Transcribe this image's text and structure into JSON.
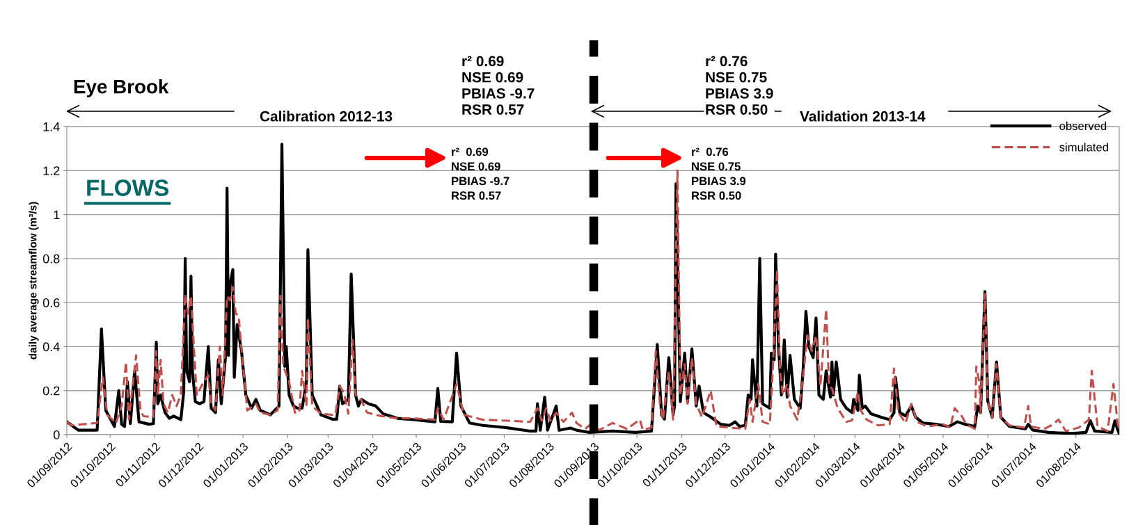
{
  "chart_data": {
    "type": "line",
    "title": "Eye Brook",
    "ylabel": "daily average streamflow (m³/s)",
    "annotations": [
      "FLOWS",
      "Calibration 2012-13",
      "Validation 2013-14",
      "r² 0.69\nNSE 0.69\nPBIAS -9.7\nRSR 0.57",
      "r²  0.69\nNSE 0.69\nPBIAS -9.7\nRSR 0.57",
      "r² 0.76\nNSE 0.75\nPBIAS 3.9\nRSR 0.50",
      "r²  0.76\nNSE 0.75\nPBIAS 3.9\nRSR 0.50"
    ],
    "xlim": [
      "2012-09-01",
      "2014-08-31"
    ],
    "xticks": [
      {
        "value": "2012-09-01",
        "label": "01/09/2012"
      },
      {
        "value": "2012-10-01",
        "label": "01/10/2012"
      },
      {
        "value": "2012-11-01",
        "label": "01/11/2012"
      },
      {
        "value": "2012-12-01",
        "label": "01/12/2012"
      },
      {
        "value": "2013-01-01",
        "label": "01/01/2013"
      },
      {
        "value": "2013-02-01",
        "label": "01/02/2013"
      },
      {
        "value": "2013-03-01",
        "label": "01/03/2013"
      },
      {
        "value": "2013-04-01",
        "label": "01/04/2013"
      },
      {
        "value": "2013-05-01",
        "label": "01/05/2013"
      },
      {
        "value": "2013-06-01",
        "label": "01/06/2013"
      },
      {
        "value": "2013-07-01",
        "label": "01/07/2013"
      },
      {
        "value": "2013-08-01",
        "label": "01/08/2013"
      },
      {
        "value": "2013-09-01",
        "label": "01/09/2013"
      },
      {
        "value": "2013-10-01",
        "label": "01/10/2013"
      },
      {
        "value": "2013-11-01",
        "label": "01/11/2013"
      },
      {
        "value": "2013-12-01",
        "label": "01/12/2013"
      },
      {
        "value": "2014-01-01",
        "label": "01/01/2014"
      },
      {
        "value": "2014-02-01",
        "label": "01/02/2014"
      },
      {
        "value": "2014-03-01",
        "label": "01/03/2014"
      },
      {
        "value": "2014-04-01",
        "label": "01/04/2014"
      },
      {
        "value": "2014-05-01",
        "label": "01/05/2014"
      },
      {
        "value": "2014-06-01",
        "label": "01/06/2014"
      },
      {
        "value": "2014-07-01",
        "label": "01/07/2014"
      },
      {
        "value": "2014-08-01",
        "label": "01/08/2014"
      }
    ],
    "ylim": [
      0,
      1.4
    ],
    "yticks": [
      0,
      0.2,
      0.4,
      0.6,
      0.8,
      1,
      1.2,
      1.4
    ],
    "grid": "y",
    "legend": "top right",
    "marker": "none",
    "ref_lines": [
      {
        "axis": "x",
        "value": "2013-09-01",
        "color": "#000000",
        "line_style": "dashed"
      }
    ],
    "series": [
      {
        "name": "observed",
        "color": "#000000",
        "line_style": "solid",
        "x": [
          "2012-09-01",
          "2012-09-09",
          "2012-09-22",
          "2012-09-25",
          "2012-09-28",
          "2012-10-04",
          "2012-10-07",
          "2012-10-09",
          "2012-10-11",
          "2012-10-13",
          "2012-10-15",
          "2012-10-18",
          "2012-10-21",
          "2012-10-28",
          "2012-10-31",
          "2012-11-02",
          "2012-11-03",
          "2012-11-05",
          "2012-11-08",
          "2012-11-11",
          "2012-11-14",
          "2012-11-19",
          "2012-11-21",
          "2012-11-22",
          "2012-11-23",
          "2012-11-25",
          "2012-11-26",
          "2012-11-27",
          "2012-11-29",
          "2012-12-02",
          "2012-12-05",
          "2012-12-08",
          "2012-12-10",
          "2012-12-13",
          "2012-12-15",
          "2012-12-17",
          "2012-12-20",
          "2012-12-21",
          "2012-12-22",
          "2012-12-23",
          "2012-12-25",
          "2012-12-26",
          "2012-12-28",
          "2012-12-31",
          "2013-01-03",
          "2013-01-07",
          "2013-01-10",
          "2013-01-13",
          "2013-01-20",
          "2013-01-26",
          "2013-01-28",
          "2013-01-30",
          "2013-01-31",
          "2013-02-02",
          "2013-02-05",
          "2013-02-08",
          "2013-02-11",
          "2013-02-14",
          "2013-02-15",
          "2013-02-18",
          "2013-02-24",
          "2013-03-04",
          "2013-03-07",
          "2013-03-09",
          "2013-03-11",
          "2013-03-15",
          "2013-03-17",
          "2013-03-20",
          "2013-03-22",
          "2013-03-24",
          "2013-03-29",
          "2013-04-03",
          "2013-04-08",
          "2013-04-18",
          "2013-04-29",
          "2013-05-14",
          "2013-05-16",
          "2013-05-18",
          "2013-05-26",
          "2013-05-29",
          "2013-06-01",
          "2013-06-07",
          "2013-06-16",
          "2013-07-02",
          "2013-07-19",
          "2013-07-23",
          "2013-07-24",
          "2013-07-26",
          "2013-07-29",
          "2013-07-31",
          "2013-08-06",
          "2013-08-08",
          "2013-08-16",
          "2013-08-20",
          "2013-08-29",
          "2013-09-14",
          "2013-09-30",
          "2013-10-11",
          "2013-10-15",
          "2013-10-18",
          "2013-10-20",
          "2013-10-23",
          "2013-10-26",
          "2013-10-27",
          "2013-10-28",
          "2013-10-31",
          "2013-11-03",
          "2013-11-05",
          "2013-11-08",
          "2013-11-11",
          "2013-11-13",
          "2013-11-16",
          "2013-11-21",
          "2013-11-28",
          "2013-12-04",
          "2013-12-08",
          "2013-12-11",
          "2013-12-15",
          "2013-12-17",
          "2013-12-19",
          "2013-12-20",
          "2013-12-23",
          "2013-12-25",
          "2013-12-27",
          "2014-01-01",
          "2014-01-02",
          "2014-01-04",
          "2014-01-05",
          "2014-01-07",
          "2014-01-09",
          "2014-01-11",
          "2014-01-13",
          "2014-01-15",
          "2014-01-18",
          "2014-01-22",
          "2014-01-24",
          "2014-01-26",
          "2014-01-28",
          "2014-01-31",
          "2014-02-02",
          "2014-02-04",
          "2014-02-07",
          "2014-02-09",
          "2014-02-12",
          "2014-02-13",
          "2014-02-14",
          "2014-02-16",
          "2014-02-19",
          "2014-02-23",
          "2014-02-27",
          "2014-02-28",
          "2014-03-03",
          "2014-03-04",
          "2014-03-06",
          "2014-03-08",
          "2014-03-12",
          "2014-03-19",
          "2014-03-25",
          "2014-03-28",
          "2014-03-29",
          "2014-04-01",
          "2014-04-05",
          "2014-04-09",
          "2014-04-12",
          "2014-04-17",
          "2014-04-26",
          "2014-05-05",
          "2014-05-11",
          "2014-05-16",
          "2014-05-23",
          "2014-05-25",
          "2014-05-27",
          "2014-05-30",
          "2014-06-01",
          "2014-06-04",
          "2014-06-07",
          "2014-06-10",
          "2014-06-16",
          "2014-06-27",
          "2014-06-29",
          "2014-07-02",
          "2014-07-13",
          "2014-07-29",
          "2014-08-08",
          "2014-08-11",
          "2014-08-14",
          "2014-08-26",
          "2014-08-28",
          "2014-08-30",
          "2014-08-31"
        ],
        "values": [
          0.058,
          0.02,
          0.02,
          0.48,
          0.11,
          0.037,
          0.2,
          0.047,
          0.037,
          0.24,
          0.05,
          0.29,
          0.058,
          0.047,
          0.05,
          0.42,
          0.14,
          0.18,
          0.1,
          0.074,
          0.084,
          0.068,
          0.195,
          0.8,
          0.29,
          0.24,
          0.72,
          0.29,
          0.15,
          0.14,
          0.15,
          0.4,
          0.12,
          0.1,
          0.34,
          0.14,
          0.36,
          1.12,
          0.36,
          0.68,
          0.75,
          0.26,
          0.5,
          0.38,
          0.18,
          0.12,
          0.16,
          0.11,
          0.09,
          0.13,
          1.32,
          0.31,
          0.4,
          0.18,
          0.13,
          0.12,
          0.12,
          0.24,
          0.84,
          0.18,
          0.09,
          0.07,
          0.07,
          0.22,
          0.14,
          0.16,
          0.73,
          0.18,
          0.13,
          0.16,
          0.14,
          0.13,
          0.095,
          0.074,
          0.068,
          0.058,
          0.21,
          0.06,
          0.058,
          0.37,
          0.13,
          0.053,
          0.042,
          0.032,
          0.016,
          0.016,
          0.14,
          0.02,
          0.17,
          0.02,
          0.13,
          0.02,
          0.03,
          0.02,
          0.01,
          0.016,
          0.01,
          0.016,
          0.41,
          0.09,
          0.07,
          0.35,
          0.09,
          0.13,
          1.14,
          0.15,
          0.37,
          0.15,
          0.39,
          0.13,
          0.22,
          0.1,
          0.08,
          0.047,
          0.042,
          0.058,
          0.037,
          0.042,
          0.18,
          0.16,
          0.34,
          0.13,
          0.8,
          0.14,
          0.12,
          0.37,
          0.34,
          0.82,
          0.4,
          0.18,
          0.43,
          0.17,
          0.36,
          0.16,
          0.12,
          0.29,
          0.56,
          0.4,
          0.35,
          0.53,
          0.18,
          0.16,
          0.29,
          0.17,
          0.33,
          0.18,
          0.33,
          0.16,
          0.12,
          0.1,
          0.16,
          0.11,
          0.27,
          0.12,
          0.13,
          0.095,
          0.079,
          0.068,
          0.1,
          0.26,
          0.1,
          0.085,
          0.13,
          0.079,
          0.053,
          0.047,
          0.037,
          0.058,
          0.047,
          0.037,
          0.13,
          0.1,
          0.65,
          0.15,
          0.079,
          0.33,
          0.079,
          0.037,
          0.026,
          0.047,
          0.021,
          0.01,
          0.005,
          0.01,
          0.063,
          0.016,
          0.01,
          0.063,
          0.021,
          0.005
        ]
      },
      {
        "name": "simulated",
        "color": "#c0504d",
        "line_style": "dashed",
        "x": [
          "2012-09-01",
          "2012-09-04",
          "2012-09-22",
          "2012-09-26",
          "2012-09-29",
          "2012-10-05",
          "2012-10-09",
          "2012-10-12",
          "2012-10-14",
          "2012-10-19",
          "2012-10-22",
          "2012-10-24",
          "2012-10-31",
          "2012-11-02",
          "2012-11-03",
          "2012-11-05",
          "2012-11-07",
          "2012-11-10",
          "2012-11-13",
          "2012-11-16",
          "2012-11-19",
          "2012-11-22",
          "2012-11-24",
          "2012-11-26",
          "2012-11-28",
          "2012-11-30",
          "2012-12-04",
          "2012-12-08",
          "2012-12-10",
          "2012-12-13",
          "2012-12-16",
          "2012-12-18",
          "2012-12-21",
          "2012-12-23",
          "2012-12-25",
          "2012-12-27",
          "2012-12-29",
          "2012-12-31",
          "2013-01-04",
          "2013-01-10",
          "2013-01-13",
          "2013-01-20",
          "2013-01-25",
          "2013-01-27",
          "2013-01-29",
          "2013-02-02",
          "2013-02-06",
          "2013-02-09",
          "2013-02-11",
          "2013-02-14",
          "2013-02-15",
          "2013-02-18",
          "2013-02-24",
          "2013-03-04",
          "2013-03-06",
          "2013-03-09",
          "2013-03-12",
          "2013-03-15",
          "2013-03-18",
          "2013-03-20",
          "2013-03-23",
          "2013-03-28",
          "2013-04-07",
          "2013-04-18",
          "2013-04-29",
          "2013-05-14",
          "2013-05-16",
          "2013-05-20",
          "2013-05-29",
          "2013-06-03",
          "2013-06-16",
          "2013-07-03",
          "2013-07-19",
          "2013-07-24",
          "2013-07-27",
          "2013-07-30",
          "2013-08-02",
          "2013-08-06",
          "2013-08-11",
          "2013-08-17",
          "2013-08-20",
          "2013-08-26",
          "2013-08-29",
          "2013-09-05",
          "2013-09-14",
          "2013-09-24",
          "2013-10-03",
          "2013-10-05",
          "2013-10-11",
          "2013-10-14",
          "2013-10-17",
          "2013-10-19",
          "2013-10-23",
          "2013-10-26",
          "2013-10-29",
          "2013-10-31",
          "2013-11-03",
          "2013-11-05",
          "2013-11-08",
          "2013-11-11",
          "2013-11-15",
          "2013-11-21",
          "2013-11-25",
          "2013-12-04",
          "2013-12-15",
          "2013-12-18",
          "2013-12-20",
          "2013-12-24",
          "2013-12-27",
          "2014-01-01",
          "2014-01-03",
          "2014-01-06",
          "2014-01-08",
          "2014-01-10",
          "2014-01-13",
          "2014-01-15",
          "2014-01-20",
          "2014-01-24",
          "2014-01-27",
          "2014-01-30",
          "2014-02-02",
          "2014-02-05",
          "2014-02-09",
          "2014-02-11",
          "2014-02-13",
          "2014-02-17",
          "2014-02-23",
          "2014-02-27",
          "2014-03-03",
          "2014-03-05",
          "2014-03-09",
          "2014-03-17",
          "2014-03-25",
          "2014-03-28",
          "2014-03-31",
          "2014-04-05",
          "2014-04-09",
          "2014-04-13",
          "2014-04-20",
          "2014-05-01",
          "2014-05-06",
          "2014-05-09",
          "2014-05-14",
          "2014-05-17",
          "2014-05-23",
          "2014-05-24",
          "2014-05-26",
          "2014-05-27",
          "2014-05-30",
          "2014-06-01",
          "2014-06-04",
          "2014-06-07",
          "2014-06-10",
          "2014-06-16",
          "2014-06-26",
          "2014-06-29",
          "2014-07-01",
          "2014-07-10",
          "2014-07-15",
          "2014-07-20",
          "2014-07-25",
          "2014-08-03",
          "2014-08-10",
          "2014-08-12",
          "2014-08-16",
          "2014-08-23",
          "2014-08-27",
          "2014-08-30",
          "2014-08-31"
        ],
        "values": [
          0.058,
          0.042,
          0.053,
          0.26,
          0.09,
          0.053,
          0.13,
          0.33,
          0.069,
          0.36,
          0.11,
          0.084,
          0.079,
          0.38,
          0.18,
          0.34,
          0.14,
          0.1,
          0.18,
          0.13,
          0.18,
          0.64,
          0.55,
          0.63,
          0.4,
          0.18,
          0.23,
          0.27,
          0.14,
          0.11,
          0.4,
          0.18,
          0.63,
          0.61,
          0.67,
          0.55,
          0.54,
          0.39,
          0.11,
          0.14,
          0.1,
          0.09,
          0.11,
          0.63,
          0.31,
          0.24,
          0.1,
          0.1,
          0.29,
          0.13,
          0.53,
          0.13,
          0.095,
          0.09,
          0.09,
          0.22,
          0.19,
          0.095,
          0.43,
          0.18,
          0.17,
          0.1,
          0.084,
          0.074,
          0.074,
          0.068,
          0.12,
          0.068,
          0.23,
          0.09,
          0.068,
          0.063,
          0.058,
          0.12,
          0.063,
          0.12,
          0.063,
          0.1,
          0.058,
          0.1,
          0.053,
          0.026,
          0.042,
          0.021,
          0.053,
          0.026,
          0.068,
          0.021,
          0.032,
          0.38,
          0.13,
          0.068,
          0.29,
          0.068,
          1.2,
          0.18,
          0.32,
          0.14,
          0.35,
          0.14,
          0.079,
          0.2,
          0.037,
          0.032,
          0.026,
          0.16,
          0.058,
          0.23,
          0.058,
          0.047,
          0.29,
          0.75,
          0.29,
          0.18,
          0.23,
          0.13,
          0.068,
          0.26,
          0.45,
          0.38,
          0.45,
          0.22,
          0.57,
          0.22,
          0.21,
          0.12,
          0.058,
          0.065,
          0.195,
          0.11,
          0.068,
          0.042,
          0.047,
          0.3,
          0.1,
          0.053,
          0.14,
          0.058,
          0.037,
          0.047,
          0.032,
          0.12,
          0.084,
          0.047,
          0.026,
          0.31,
          0.24,
          0.1,
          0.64,
          0.15,
          0.079,
          0.32,
          0.079,
          0.042,
          0.032,
          0.13,
          0.037,
          0.026,
          0.042,
          0.068,
          0.016,
          0.032,
          0.068,
          0.29,
          0.037,
          0.016,
          0.23,
          0.047,
          0.026
        ]
      }
    ]
  }
}
